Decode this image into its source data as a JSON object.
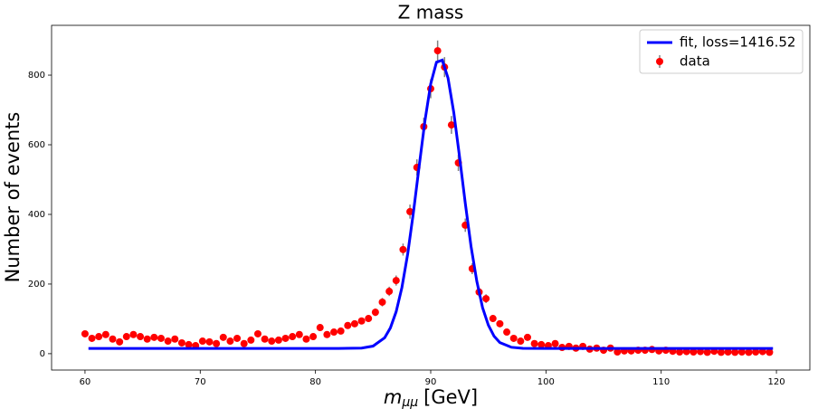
{
  "chart_data": {
    "type": "errorbar",
    "title": "Z mass",
    "xlabel": {
      "symbol": "m",
      "subscript": "μμ",
      "unit": "[GeV]"
    },
    "ylabel": "Number of events",
    "xlim": [
      57.1,
      122.9
    ],
    "ylim": [
      -47,
      943
    ],
    "xticks": [
      60,
      70,
      80,
      90,
      100,
      110,
      120
    ],
    "yticks": [
      0,
      200,
      400,
      600,
      800
    ],
    "legend": "upper right",
    "series": [
      {
        "name": "fit, loss=1416.52",
        "type": "line",
        "color": "#0000ff",
        "x": [
          60.3,
          65,
          70,
          75,
          80,
          82,
          84,
          85,
          86,
          86.5,
          87,
          87.5,
          88,
          88.5,
          89,
          89.5,
          90,
          90.5,
          91,
          91.5,
          92,
          92.5,
          93,
          93.5,
          94,
          94.5,
          95,
          95.5,
          96,
          97,
          98,
          100,
          110,
          119.7
        ],
        "values": [
          15,
          15,
          15,
          15,
          15,
          15,
          16.1,
          21.8,
          45.7,
          74,
          120.5,
          190,
          286,
          406,
          539,
          669,
          775,
          837,
          843,
          792,
          693,
          566,
          432,
          308,
          208,
          132,
          82,
          50,
          32,
          18.4,
          15.5,
          15,
          15,
          15
        ]
      },
      {
        "name": "data",
        "type": "errorbar",
        "color": "#ff0000",
        "error_color": "#808080",
        "x": [
          60,
          60.6,
          61.2,
          61.8,
          62.4,
          63,
          63.6,
          64.2,
          64.8,
          65.4,
          66,
          66.6,
          67.2,
          67.8,
          68.4,
          69,
          69.6,
          70.2,
          70.8,
          71.4,
          72,
          72.6,
          73.2,
          73.8,
          74.4,
          75,
          75.6,
          76.2,
          76.8,
          77.4,
          78,
          78.6,
          79.2,
          79.8,
          80.4,
          81,
          81.6,
          82.2,
          82.8,
          83.4,
          84,
          84.6,
          85.2,
          85.8,
          86.4,
          87,
          87.6,
          88.2,
          88.8,
          89.4,
          90,
          90.6,
          91.2,
          91.8,
          92.4,
          93,
          93.6,
          94.2,
          94.8,
          95.4,
          96,
          96.6,
          97.2,
          97.8,
          98.4,
          99,
          99.6,
          100.2,
          100.8,
          101.4,
          102,
          102.6,
          103.2,
          103.8,
          104.4,
          105,
          105.6,
          106.2,
          106.8,
          107.4,
          108,
          108.6,
          109.2,
          109.8,
          110.4,
          111,
          111.6,
          112.2,
          112.8,
          113.4,
          114,
          114.6,
          115.2,
          115.8,
          116.4,
          117,
          117.6,
          118.2,
          118.8,
          119.4
        ],
        "values": [
          57,
          44,
          49,
          55,
          42,
          34,
          49,
          55,
          49,
          42,
          47,
          44,
          36,
          42,
          31,
          26,
          23,
          36,
          34,
          29,
          47,
          36,
          44,
          29,
          39,
          57,
          42,
          36,
          39,
          44,
          49,
          55,
          42,
          49,
          75,
          55,
          62,
          65,
          81,
          86,
          94,
          101,
          119,
          148,
          179,
          210,
          299,
          408,
          535,
          652,
          761,
          870,
          823,
          657,
          548,
          369,
          244,
          177,
          158,
          101,
          86,
          62,
          44,
          36,
          47,
          29,
          26,
          23,
          29,
          18,
          21,
          16,
          21,
          13,
          16,
          10,
          16,
          5,
          8,
          8,
          10,
          10,
          12,
          8,
          10,
          7,
          5,
          6,
          5,
          6,
          4,
          7,
          4,
          5,
          4,
          5,
          4,
          5,
          6,
          4
        ],
        "errors": [
          7.5,
          6.6,
          7,
          7.4,
          6.5,
          5.8,
          7,
          7.4,
          7,
          6.5,
          6.9,
          6.6,
          6,
          6.5,
          5.6,
          5.1,
          4.8,
          6,
          5.8,
          5.4,
          6.9,
          6,
          6.6,
          5.4,
          6.2,
          7.5,
          6.5,
          6,
          6.2,
          6.6,
          7,
          7.4,
          6.5,
          7,
          8.7,
          7.4,
          7.9,
          8.1,
          9,
          9.3,
          9.7,
          10,
          10.9,
          12.2,
          13.4,
          14.5,
          17.3,
          20.2,
          23.1,
          25.5,
          27.6,
          29.5,
          28.7,
          25.6,
          23.4,
          19.2,
          15.6,
          13.3,
          12.6,
          10,
          9.3,
          7.9,
          6.6,
          6,
          6.9,
          5.4,
          5.1,
          4.8,
          5.4,
          4.2,
          4.6,
          4,
          4.6,
          3.6,
          4,
          3.2,
          4,
          2.2,
          2.8,
          2.8,
          3.2,
          3.2,
          3.5,
          2.8,
          3.2,
          2.6,
          2.2,
          2.4,
          2.2,
          2.4,
          2,
          2.6,
          2,
          2.2,
          2,
          2.2,
          2,
          2.2,
          2.4,
          2
        ]
      }
    ]
  }
}
